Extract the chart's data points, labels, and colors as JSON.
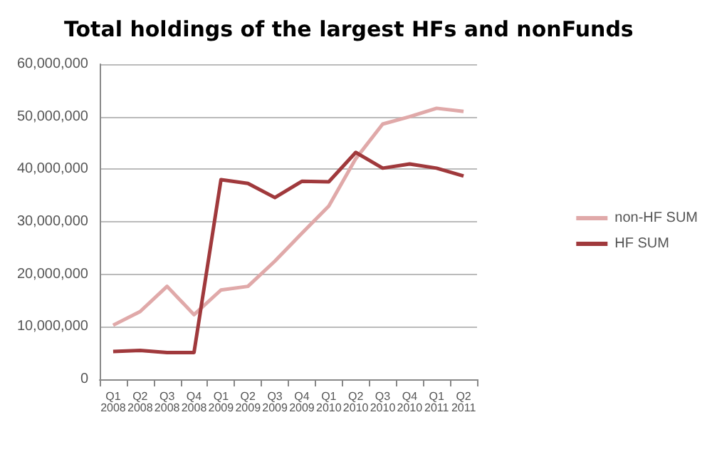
{
  "chart_data": {
    "type": "line",
    "title": "Total holdings of the largest HFs and nonFunds",
    "categories": [
      "Q1 2008",
      "Q2 2008",
      "Q3 2008",
      "Q4 2008",
      "Q1 2009",
      "Q2 2009",
      "Q3 2009",
      "Q4 2009",
      "Q1 2010",
      "Q2 2010",
      "Q3 2010",
      "Q4 2010",
      "Q1 2011",
      "Q2 2011"
    ],
    "series": [
      {
        "name": "non-HF SUM",
        "color": "#e0a9a9",
        "values": [
          10300000,
          12900000,
          17700000,
          12300000,
          17000000,
          17700000,
          22500000,
          27800000,
          33000000,
          42000000,
          48600000,
          50000000,
          51600000,
          51000000
        ]
      },
      {
        "name": "HF SUM",
        "color": "#a0393c",
        "values": [
          5300000,
          5500000,
          5100000,
          5100000,
          38000000,
          37300000,
          34600000,
          37700000,
          37600000,
          43200000,
          40200000,
          41000000,
          40200000,
          38700000
        ]
      }
    ],
    "ylim": [
      0,
      60000000
    ],
    "yticks": [
      0,
      {
        "value": 10000000,
        "label": "10,000,000"
      },
      {
        "value": 20000000,
        "label": "20,000,000"
      },
      {
        "value": 30000000,
        "label": "30,000,000"
      },
      {
        "value": 40000000,
        "label": "40,000,000"
      },
      {
        "value": 50000000,
        "label": "50,000,000"
      },
      {
        "value": 60000000,
        "label": "60,000,000"
      }
    ],
    "grid": "y",
    "legend": "right",
    "marker": "none",
    "line_style": "solid"
  }
}
